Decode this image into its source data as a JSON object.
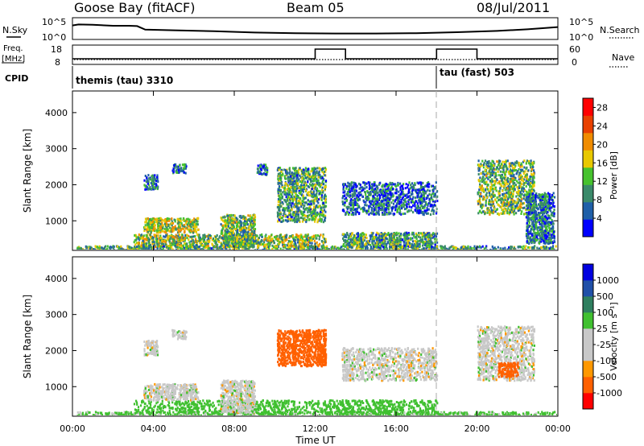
{
  "header": {
    "station": "Goose Bay (fitACF)",
    "beam": "Beam 05",
    "date": "08/Jul/2011"
  },
  "noise_panel": {
    "left_label": "N.Sky",
    "right_label": "N.Search",
    "left_ticks": [
      "10^5",
      "10^0"
    ],
    "right_ticks": [
      "10^5",
      "10^0"
    ],
    "sky_trace_log10": [
      {
        "t": 0.0,
        "v": 3.6
      },
      {
        "t": 0.3,
        "v": 3.9
      },
      {
        "t": 1.0,
        "v": 3.8
      },
      {
        "t": 2.0,
        "v": 3.5
      },
      {
        "t": 2.8,
        "v": 3.5
      },
      {
        "t": 3.2,
        "v": 3.4
      },
      {
        "t": 3.6,
        "v": 2.3
      },
      {
        "t": 5.0,
        "v": 2.1
      },
      {
        "t": 7.0,
        "v": 1.8
      },
      {
        "t": 9.0,
        "v": 1.4
      },
      {
        "t": 11.0,
        "v": 1.2
      },
      {
        "t": 13.0,
        "v": 1.1
      },
      {
        "t": 15.0,
        "v": 1.1
      },
      {
        "t": 17.0,
        "v": 1.2
      },
      {
        "t": 19.0,
        "v": 1.5
      },
      {
        "t": 21.0,
        "v": 1.9
      },
      {
        "t": 22.5,
        "v": 2.4
      },
      {
        "t": 24.0,
        "v": 3.1
      }
    ]
  },
  "freq_panel": {
    "left_label_line1": "Freq.",
    "left_label_line2": "[MHz]",
    "right_label": "Nave",
    "left_ticks": [
      "18",
      "8"
    ],
    "right_ticks": [
      "60",
      "0"
    ],
    "freq_segments": [
      {
        "t0": 0,
        "t1": 12,
        "v": 10.5
      },
      {
        "t0": 12,
        "t1": 13.5,
        "v": 16.5
      },
      {
        "t0": 13.5,
        "t1": 18,
        "v": 10.5
      },
      {
        "t0": 18,
        "t1": 20,
        "v": 16.5
      },
      {
        "t0": 20,
        "t1": 24,
        "v": 10.5
      }
    ]
  },
  "cpid_panel": {
    "label": "CPID",
    "modes": [
      {
        "t": 0,
        "name": "themis (tau) 3310"
      },
      {
        "t": 18,
        "name": "tau (fast) 503"
      }
    ]
  },
  "colors": {
    "power_scale": [
      "#0000ff",
      "#1f5fa8",
      "#3a8a6a",
      "#46c22e",
      "#e8c800",
      "#f08c00",
      "#e84000",
      "#ff0000"
    ],
    "velocity_scale": [
      "#ff0000",
      "#ff6000",
      "#ff9800",
      "#c8c8c8",
      "#c8c8c8",
      "#40c030",
      "#2f7f5f",
      "#2050a8",
      "#0000e0"
    ]
  },
  "chart_data": [
    {
      "type": "heatmap",
      "name": "Power",
      "xlabel": "",
      "ylabel": "Slant Range [km]",
      "xlim": [
        0,
        24
      ],
      "ylim": [
        180,
        4600
      ],
      "yticks": [
        1000,
        2000,
        3000,
        4000
      ],
      "colorbar": {
        "label": "Power [dB]",
        "ticks": [
          "4",
          "8",
          "12",
          "16",
          "20",
          "24",
          "28"
        ],
        "range": [
          0,
          30
        ]
      },
      "regions": [
        {
          "t0": 0.2,
          "t1": 24.0,
          "r0": 180,
          "r1": 330,
          "level": 0.35
        },
        {
          "t0": 3.0,
          "t1": 12.5,
          "r0": 300,
          "r1": 650,
          "level": 0.45
        },
        {
          "t0": 3.5,
          "t1": 6.2,
          "r0": 700,
          "r1": 1100,
          "level": 0.5
        },
        {
          "t0": 3.5,
          "t1": 4.2,
          "r0": 1900,
          "r1": 2300,
          "level": 0.25
        },
        {
          "t0": 4.9,
          "t1": 5.6,
          "r0": 2350,
          "r1": 2600,
          "level": 0.25
        },
        {
          "t0": 7.3,
          "t1": 9.0,
          "r0": 300,
          "r1": 1200,
          "level": 0.4
        },
        {
          "t0": 10.1,
          "t1": 12.5,
          "r0": 1000,
          "r1": 2500,
          "level": 0.35
        },
        {
          "t0": 9.1,
          "t1": 9.6,
          "r0": 2300,
          "r1": 2600,
          "level": 0.25
        },
        {
          "t0": 13.3,
          "t1": 18.0,
          "r0": 1200,
          "r1": 2100,
          "level": 0.2
        },
        {
          "t0": 13.3,
          "t1": 18.0,
          "r0": 300,
          "r1": 700,
          "level": 0.35
        },
        {
          "t0": 20.0,
          "t1": 22.8,
          "r0": 1200,
          "r1": 2700,
          "level": 0.4
        },
        {
          "t0": 22.4,
          "t1": 23.8,
          "r0": 400,
          "r1": 1800,
          "level": 0.25
        }
      ]
    },
    {
      "type": "heatmap",
      "name": "Velocity",
      "xlabel": "Time UT",
      "ylabel": "Slant Range [km]",
      "xlim": [
        0,
        24
      ],
      "ylim": [
        180,
        4600
      ],
      "yticks": [
        1000,
        2000,
        3000,
        4000
      ],
      "xticks": [
        "00:00",
        "04:00",
        "08:00",
        "12:00",
        "16:00",
        "20:00",
        "00:00"
      ],
      "colorbar": {
        "label": "Velocity [m s⁻¹]",
        "ticks": [
          "-1000",
          "-500",
          "-100",
          "-25",
          "25",
          "100",
          "500",
          "1000"
        ]
      },
      "regions": [
        {
          "t0": 0.2,
          "t1": 24.0,
          "r0": 180,
          "r1": 330,
          "v": 40
        },
        {
          "t0": 3.0,
          "t1": 18.0,
          "r0": 300,
          "r1": 650,
          "v": 60
        },
        {
          "t0": 3.5,
          "t1": 6.2,
          "r0": 650,
          "r1": 1100,
          "v": 0
        },
        {
          "t0": 3.5,
          "t1": 4.2,
          "r0": 1900,
          "r1": 2300,
          "v": 0
        },
        {
          "t0": 4.9,
          "t1": 5.6,
          "r0": 2350,
          "r1": 2600,
          "v": 0
        },
        {
          "t0": 7.3,
          "t1": 9.0,
          "r0": 300,
          "r1": 1200,
          "v": 0
        },
        {
          "t0": 10.1,
          "t1": 12.5,
          "r0": 1600,
          "r1": 2600,
          "v": -150
        },
        {
          "t0": 13.3,
          "t1": 18.0,
          "r0": 1200,
          "r1": 2100,
          "v": 0
        },
        {
          "t0": 20.0,
          "t1": 22.8,
          "r0": 1200,
          "r1": 2700,
          "v": 0
        },
        {
          "t0": 21.0,
          "t1": 22.0,
          "r0": 1300,
          "r1": 1700,
          "v": -150
        }
      ]
    }
  ]
}
